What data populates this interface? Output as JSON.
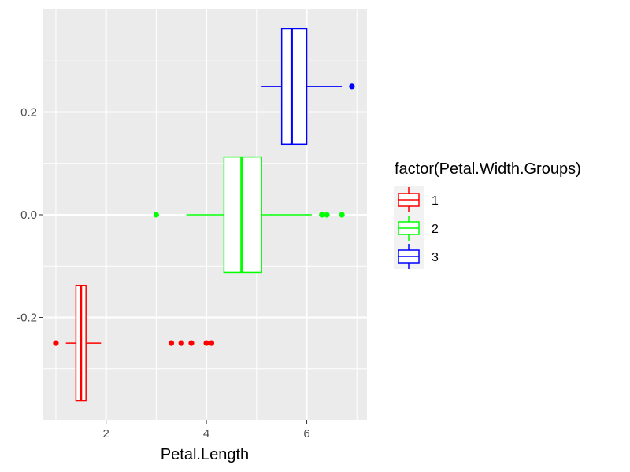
{
  "chart_data": {
    "type": "boxplot",
    "title": "",
    "xlabel": "Petal.Length",
    "ylabel": "",
    "xlim": [
      0.75,
      7.2
    ],
    "ylim": [
      -0.4,
      0.4
    ],
    "x_ticks": [
      2,
      4,
      6
    ],
    "x_tick_labels": [
      "2",
      "4",
      "6"
    ],
    "y_ticks": [
      -0.2,
      0.0,
      0.2
    ],
    "y_tick_labels": [
      "-0.2",
      "0.0",
      "0.2"
    ],
    "grid": true,
    "legend_position": "right",
    "legend_title": "factor(Petal.Width.Groups)",
    "series": [
      {
        "name": "1",
        "color": "#ff0000",
        "y_center": -0.25,
        "y_extent": [
          -0.3625,
          -0.1375
        ],
        "whisker_low": 1.2,
        "q1": 1.4,
        "median": 1.5,
        "q3": 1.6,
        "whisker_high": 1.9,
        "outliers": [
          1.0,
          3.3,
          3.5,
          3.7,
          4.0,
          4.1
        ]
      },
      {
        "name": "2",
        "color": "#00ff00",
        "y_center": 0.0,
        "y_extent": [
          -0.1125,
          0.1125
        ],
        "whisker_low": 3.6,
        "q1": 4.35,
        "median": 4.7,
        "q3": 5.1,
        "whisker_high": 6.1,
        "outliers": [
          3.0,
          6.3,
          6.4,
          6.7
        ]
      },
      {
        "name": "3",
        "color": "#0000ff",
        "y_center": 0.25,
        "y_extent": [
          0.1375,
          0.3625
        ],
        "whisker_low": 5.1,
        "q1": 5.5,
        "median": 5.7,
        "q3": 6.0,
        "whisker_high": 6.7,
        "outliers": [
          6.9
        ]
      }
    ]
  }
}
